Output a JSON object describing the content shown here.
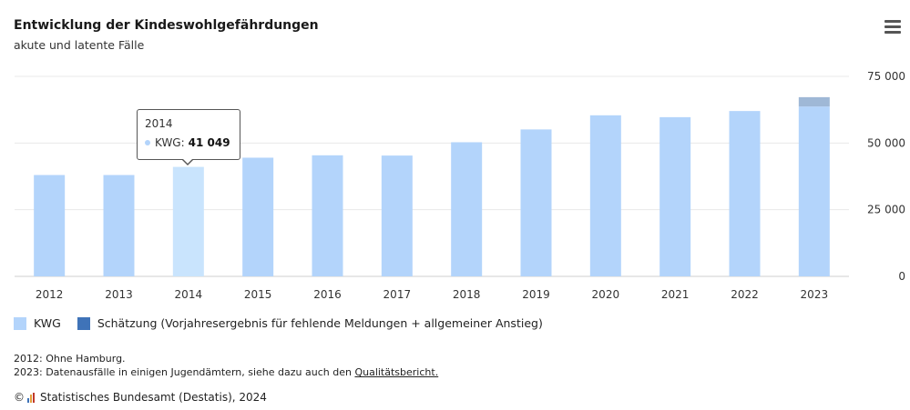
{
  "chart_data": {
    "type": "bar",
    "title": "Entwicklung der Kindeswohlgefährdungen",
    "subtitle": "akute und latente Fälle",
    "categories": [
      "2012",
      "2013",
      "2014",
      "2015",
      "2016",
      "2017",
      "2018",
      "2019",
      "2020",
      "2021",
      "2022",
      "2023"
    ],
    "series": [
      {
        "name": "KWG",
        "color": "#b3d4fb",
        "values": [
          38000,
          38000,
          41049,
          44500,
          45400,
          45300,
          50300,
          55100,
          60400,
          59700,
          62000,
          63700
        ]
      },
      {
        "name": "Schätzung (Vorjahresergebnis für fehlende Meldungen + allgemeiner Anstieg)",
        "color": "#3f73b8",
        "values": [
          0,
          0,
          0,
          0,
          0,
          0,
          0,
          0,
          0,
          0,
          0,
          3500
        ]
      }
    ],
    "stacked": true,
    "ylim": [
      0,
      75000
    ],
    "yticks": [
      0,
      25000,
      50000,
      75000
    ],
    "ytick_labels": [
      "0",
      "25 000",
      "50 000",
      "75 000"
    ],
    "y_axis_side": "right",
    "grid": true,
    "legend_position": "bottom-left",
    "highlight_index": 2
  },
  "tooltip": {
    "year": "2014",
    "series_label": "KWG:",
    "value": "41 049"
  },
  "notes": {
    "note1": "2012: Ohne Hamburg.",
    "note2": "2023: Datenausfälle in einigen Jugendämtern, siehe dazu auch den",
    "link": "Qualitätsbericht."
  },
  "source": {
    "copyright": "©",
    "text": "Statistisches Bundesamt (Destatis), 2024"
  },
  "menu": {
    "icon": "hamburger-menu-icon"
  }
}
